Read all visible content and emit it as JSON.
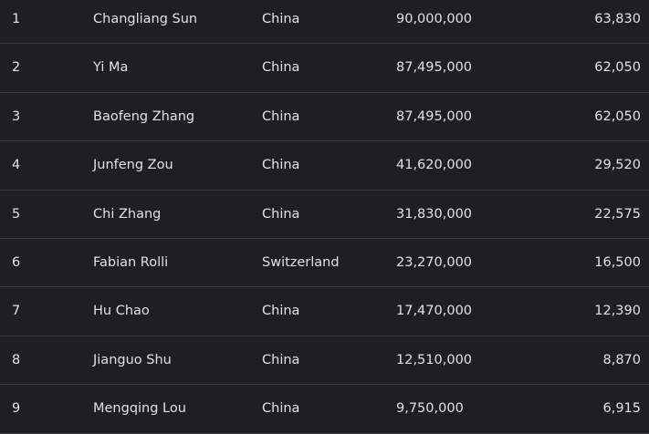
{
  "rows": [
    [
      "1",
      "Changliang Sun",
      "China",
      "90,000,000",
      "63,830"
    ],
    [
      "2",
      "Yi Ma",
      "China",
      "87,495,000",
      "62,050"
    ],
    [
      "3",
      "Baofeng Zhang",
      "China",
      "87,495,000",
      "62,050"
    ],
    [
      "4",
      "Junfeng Zou",
      "China",
      "41,620,000",
      "29,520"
    ],
    [
      "5",
      "Chi Zhang",
      "China",
      "31,830,000",
      "22,575"
    ],
    [
      "6",
      "Fabian Rolli",
      "Switzerland",
      "23,270,000",
      "16,500"
    ],
    [
      "7",
      "Hu Chao",
      "China",
      "17,470,000",
      "12,390"
    ],
    [
      "8",
      "Jianguo Shu",
      "China",
      "12,510,000",
      "8,870"
    ],
    [
      "9",
      "Mengqing Lou",
      "China",
      "9,750,000",
      "6,915"
    ]
  ]
}
